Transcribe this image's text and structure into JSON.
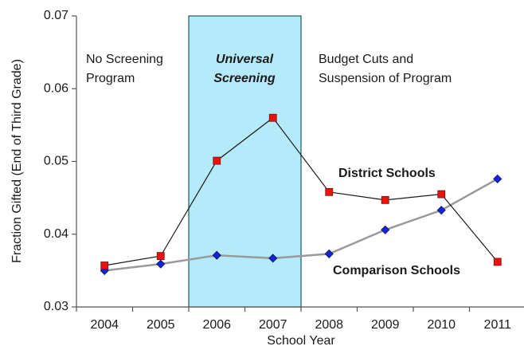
{
  "chart_data": {
    "type": "line",
    "x_label": "School Year",
    "y_label": "Fraction Gifted (End of Third Grade)",
    "categories": [
      "2004",
      "2005",
      "2006",
      "2007",
      "2008",
      "2009",
      "2010",
      "2011"
    ],
    "series": [
      {
        "name": "District Schools",
        "color": "#e8130c",
        "line_color": "#1a1a1a",
        "marker": "square",
        "values": [
          0.0357,
          0.037,
          0.0501,
          0.056,
          0.0458,
          0.0447,
          0.0455,
          0.0362
        ]
      },
      {
        "name": "Comparison Schools",
        "color": "#1525d6",
        "line_color": "#9a9a9a",
        "marker": "diamond",
        "values": [
          0.035,
          0.0359,
          0.0371,
          0.0367,
          0.0373,
          0.0406,
          0.0433,
          0.0476
        ]
      }
    ],
    "ylim": [
      0.03,
      0.07
    ],
    "yticks": [
      0.03,
      0.04,
      0.05,
      0.06,
      0.07
    ],
    "highlight_from": "2006",
    "highlight_to": "2007",
    "highlight_color": "#b5eafb",
    "annotations": [
      {
        "lines": [
          "No Screening",
          "Program"
        ]
      },
      {
        "lines": [
          "Universal",
          "Screening"
        ]
      },
      {
        "lines": [
          "Budget Cuts and",
          "Suspension of Program"
        ]
      }
    ]
  }
}
